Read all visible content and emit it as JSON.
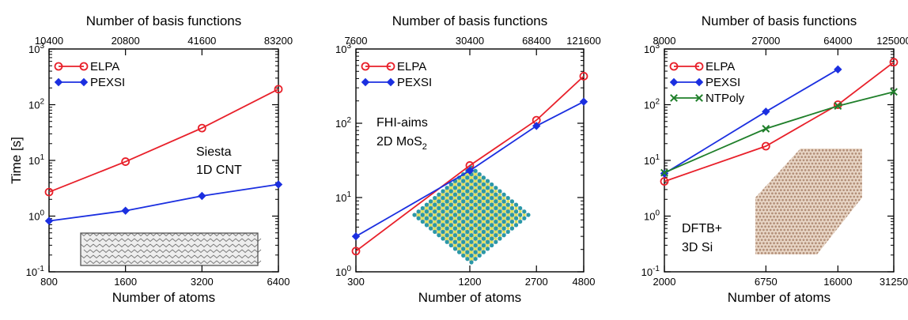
{
  "colors": {
    "ELPA": "#e8202a",
    "PEXSI": "#1b2fe0",
    "NTPoly": "#1f7f2a"
  },
  "chart_data": [
    {
      "type": "line",
      "ylabel": "Time [s]",
      "xlabel": "Number of atoms",
      "x2label": "Number of basis functions",
      "yscale": "log",
      "ylim": [
        0.1,
        1000
      ],
      "y_ticks": [
        {
          "value": 0.1,
          "base": "10",
          "exp": "-1"
        },
        {
          "value": 1,
          "base": "10",
          "exp": "0"
        },
        {
          "value": 10,
          "base": "10",
          "exp": "1"
        },
        {
          "value": 100,
          "base": "10",
          "exp": "2"
        },
        {
          "value": 1000,
          "base": "10",
          "exp": "3"
        }
      ],
      "x_ticks": [
        "800",
        "1600",
        "3200",
        "6400"
      ],
      "x2_ticks": [
        "10400",
        "20800",
        "41600",
        "83200"
      ],
      "annotation": [
        "Siesta",
        "1D CNT"
      ],
      "legend_position": "top-left",
      "series": [
        {
          "name": "ELPA",
          "x": [
            800,
            1600,
            3200,
            6400
          ],
          "y": [
            2.7,
            9.5,
            38,
            190
          ]
        },
        {
          "name": "PEXSI",
          "x": [
            800,
            1600,
            3200,
            6400
          ],
          "y": [
            0.82,
            1.25,
            2.3,
            3.7
          ]
        }
      ]
    },
    {
      "type": "line",
      "ylabel": "",
      "xlabel": "Number of atoms",
      "x2label": "Number of basis functions",
      "yscale": "log",
      "ylim": [
        1,
        1000
      ],
      "y_ticks": [
        {
          "value": 1,
          "base": "10",
          "exp": "0"
        },
        {
          "value": 10,
          "base": "10",
          "exp": "1"
        },
        {
          "value": 100,
          "base": "10",
          "exp": "2"
        },
        {
          "value": 1000,
          "base": "10",
          "exp": "3"
        }
      ],
      "x_ticks": [
        "300",
        "1200",
        "2700",
        "4800"
      ],
      "x2_ticks": [
        "7600",
        "30400",
        "68400",
        "121600"
      ],
      "annotation": [
        "FHI-aims",
        "2D MoS",
        "2"
      ],
      "legend_position": "top-left",
      "series": [
        {
          "name": "ELPA",
          "x": [
            300,
            1200,
            2700,
            4800
          ],
          "y": [
            1.9,
            27,
            110,
            430
          ]
        },
        {
          "name": "PEXSI",
          "x": [
            300,
            1200,
            2700,
            4800
          ],
          "y": [
            3.0,
            23,
            92,
            195
          ]
        }
      ]
    },
    {
      "type": "line",
      "ylabel": "",
      "xlabel": "Number of atoms",
      "x2label": "Number of basis functions",
      "yscale": "log",
      "ylim": [
        0.1,
        1000
      ],
      "y_ticks": [
        {
          "value": 0.1,
          "base": "10",
          "exp": "-1"
        },
        {
          "value": 1,
          "base": "10",
          "exp": "0"
        },
        {
          "value": 10,
          "base": "10",
          "exp": "1"
        },
        {
          "value": 100,
          "base": "10",
          "exp": "2"
        },
        {
          "value": 1000,
          "base": "10",
          "exp": "3"
        }
      ],
      "x_ticks": [
        "2000",
        "6750",
        "16000",
        "31250"
      ],
      "x2_ticks": [
        "8000",
        "27000",
        "64000",
        "125000"
      ],
      "annotation": [
        "DFTB+",
        "3D Si"
      ],
      "legend_position": "top-left",
      "series": [
        {
          "name": "ELPA",
          "x": [
            2000,
            6750,
            16000,
            31250
          ],
          "y": [
            4.2,
            18,
            100,
            580
          ]
        },
        {
          "name": "PEXSI",
          "x": [
            2000,
            6750,
            16000
          ],
          "y": [
            5.8,
            75,
            430
          ]
        },
        {
          "name": "NTPoly",
          "x": [
            2000,
            6750,
            16000,
            31250
          ],
          "y": [
            6.0,
            37,
            95,
            170
          ]
        }
      ]
    }
  ]
}
